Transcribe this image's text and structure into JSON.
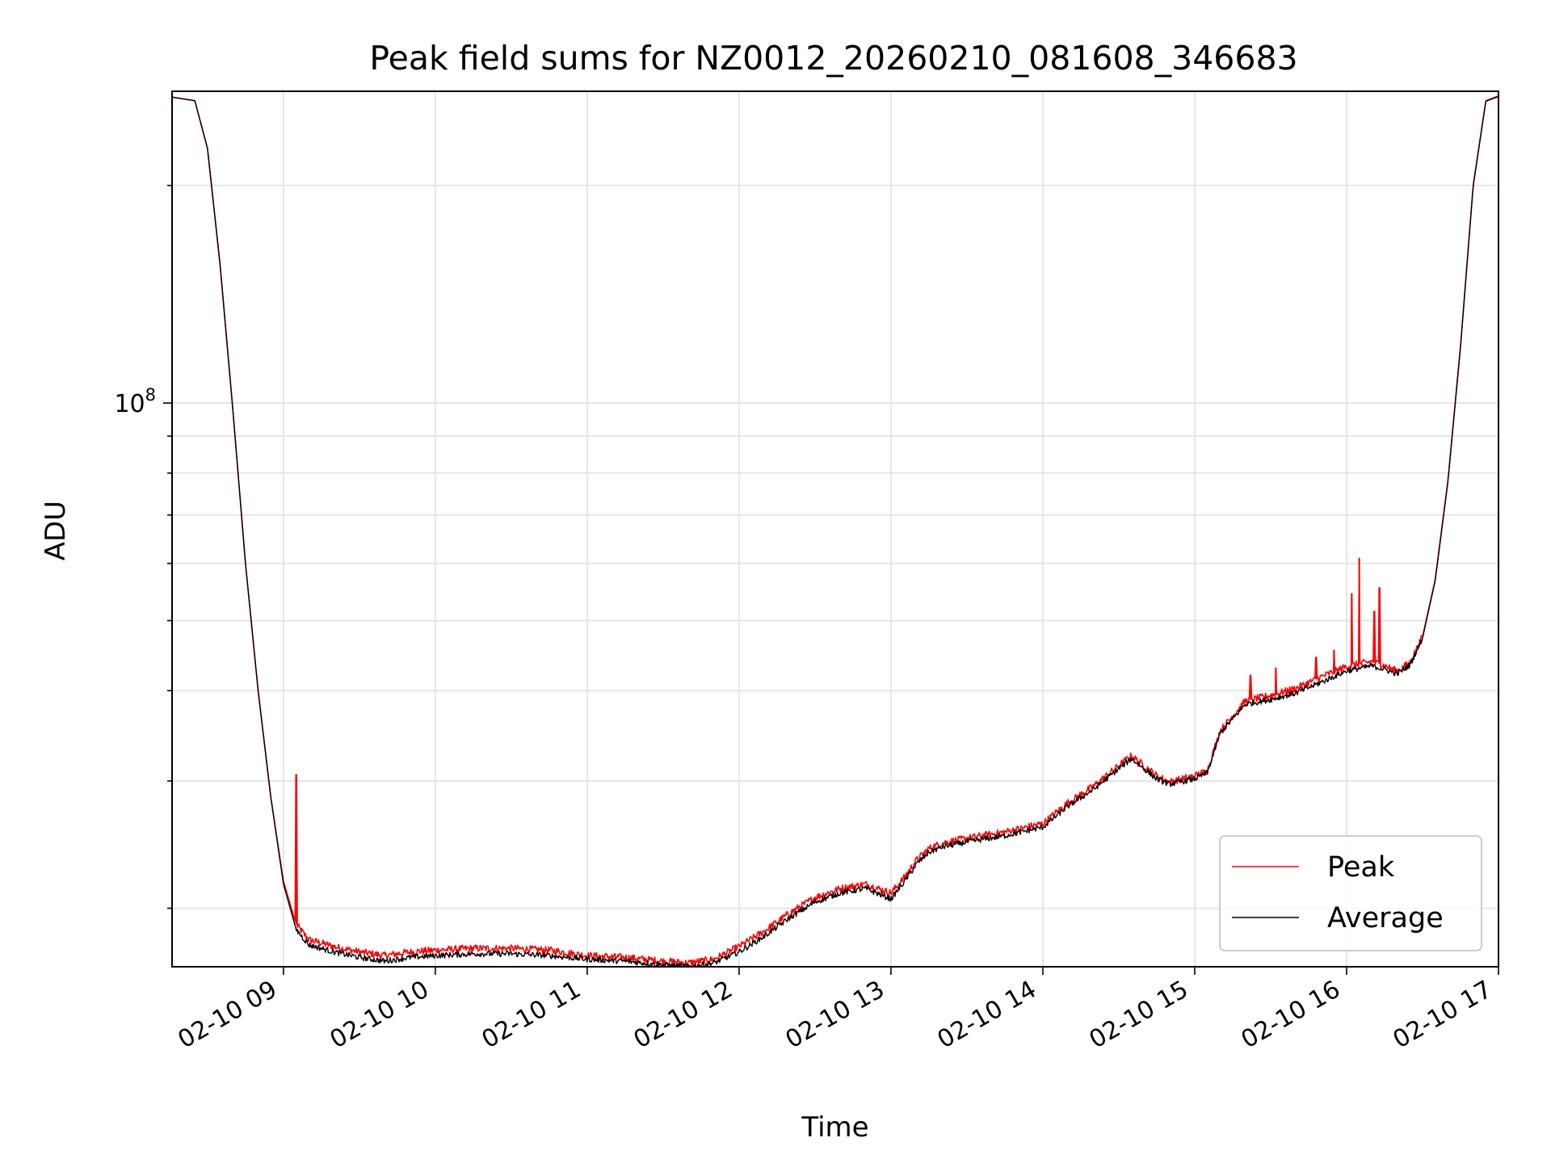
{
  "chart_data": {
    "type": "line",
    "title": "Peak field sums for NZ0012_20260210_081608_346683",
    "xlabel": "Time",
    "ylabel": "ADU",
    "y_scale": "log",
    "ylim": [
      16600000,
      270000000
    ],
    "xlim": [
      "02-10 08:16",
      "02-10 17:00"
    ],
    "grid": true,
    "legend_position": "lower-right",
    "x_tick_labels": [
      "02-10 09",
      "02-10 10",
      "02-10 11",
      "02-10 12",
      "02-10 13",
      "02-10 14",
      "02-10 15",
      "02-10 16",
      "02-10 17"
    ],
    "y_tick_labels": [
      {
        "base": "10",
        "exp": "8"
      }
    ],
    "colors": {
      "peak": "#ff0000",
      "average": "#000000"
    },
    "x": [
      "02-10 08:16",
      "02-10 08:25",
      "02-10 08:30",
      "02-10 08:35",
      "02-10 08:40",
      "02-10 08:45",
      "02-10 08:50",
      "02-10 08:55",
      "02-10 09:00",
      "02-10 09:05",
      "02-10 09:10",
      "02-10 09:15",
      "02-10 09:20",
      "02-10 09:30",
      "02-10 09:40",
      "02-10 09:50",
      "02-10 10:00",
      "02-10 10:15",
      "02-10 10:30",
      "02-10 10:45",
      "02-10 11:00",
      "02-10 11:15",
      "02-10 11:30",
      "02-10 11:40",
      "02-10 11:50",
      "02-10 12:00",
      "02-10 12:10",
      "02-10 12:20",
      "02-10 12:30",
      "02-10 12:40",
      "02-10 12:50",
      "02-10 13:00",
      "02-10 13:05",
      "02-10 13:10",
      "02-10 13:15",
      "02-10 13:20",
      "02-10 13:30",
      "02-10 13:45",
      "02-10 14:00",
      "02-10 14:10",
      "02-10 14:20",
      "02-10 14:30",
      "02-10 14:35",
      "02-10 14:45",
      "02-10 14:50",
      "02-10 15:00",
      "02-10 15:05",
      "02-10 15:10",
      "02-10 15:20",
      "02-10 15:30",
      "02-10 15:40",
      "02-10 15:50",
      "02-10 16:00",
      "02-10 16:10",
      "02-10 16:15",
      "02-10 16:20",
      "02-10 16:25",
      "02-10 16:30",
      "02-10 16:35",
      "02-10 16:40",
      "02-10 16:45",
      "02-10 16:50",
      "02-10 16:55",
      "02-10 17:00"
    ],
    "series": [
      {
        "name": "Peak",
        "values": [
          265000000,
          262000000,
          225000000,
          155000000,
          98000000,
          60000000,
          40000000,
          28500000,
          21800000,
          19000000,
          18100000,
          17900000,
          17700000,
          17400000,
          17200000,
          17400000,
          17500000,
          17600000,
          17600000,
          17500000,
          17200000,
          17100000,
          16900000,
          16800000,
          17000000,
          17700000,
          18600000,
          19700000,
          20700000,
          21300000,
          21600000,
          21000000,
          22000000,
          23300000,
          24200000,
          24600000,
          25000000,
          25500000,
          26200000,
          28000000,
          29500000,
          31500000,
          32500000,
          30500000,
          29900000,
          30500000,
          31000000,
          35200000,
          38700000,
          39400000,
          40300000,
          41800000,
          43200000,
          43900000,
          43300000,
          42600000,
          43700000,
          47500000,
          57000000,
          78000000,
          120000000,
          200000000,
          262000000,
          266000000
        ]
      },
      {
        "name": "Average",
        "values": [
          265000000,
          262000000,
          225000000,
          155000000,
          98000000,
          60000000,
          40000000,
          28500000,
          21600000,
          18700000,
          17800000,
          17600000,
          17400000,
          17100000,
          16900000,
          17100000,
          17200000,
          17300000,
          17300000,
          17200000,
          17000000,
          16900000,
          16700000,
          16600000,
          16800000,
          17400000,
          18300000,
          19400000,
          20400000,
          21000000,
          21300000,
          20600000,
          21700000,
          23000000,
          23900000,
          24300000,
          24700000,
          25200000,
          25900000,
          27700000,
          29200000,
          31200000,
          32200000,
          30200000,
          29700000,
          30200000,
          30800000,
          34900000,
          38300000,
          38900000,
          39700000,
          41100000,
          42600000,
          43300000,
          42800000,
          42200000,
          43400000,
          47300000,
          56800000,
          77700000,
          119500000,
          199500000,
          261500000,
          265500000
        ]
      }
    ],
    "peak_spikes": [
      {
        "x": "02-10 09:05",
        "value": 30600000
      },
      {
        "x": "02-10 15:22",
        "value": 42000000
      },
      {
        "x": "02-10 15:32",
        "value": 43000000
      },
      {
        "x": "02-10 15:48",
        "value": 44500000
      },
      {
        "x": "02-10 15:55",
        "value": 45500000
      },
      {
        "x": "02-10 16:02",
        "value": 54500000
      },
      {
        "x": "02-10 16:05",
        "value": 61000000
      },
      {
        "x": "02-10 16:11",
        "value": 51500000
      },
      {
        "x": "02-10 16:13",
        "value": 55500000
      }
    ]
  }
}
